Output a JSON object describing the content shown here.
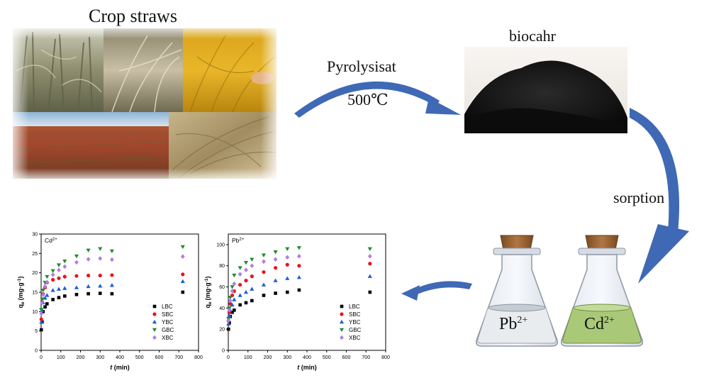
{
  "labels": {
    "crop_straws": "Crop straws",
    "pyrolysis": "Pyrolysisat",
    "temperature": "500℃",
    "biochar": "biocahr",
    "sorption": "sorption",
    "flask_pb_ion": "Pb",
    "flask_pb_charge": "2+",
    "flask_cd_ion": "Cd",
    "flask_cd_charge": "2+"
  },
  "colors": {
    "arrow_blue": "#3f69b5",
    "flask_pb_liquid": "#e9ecef",
    "flask_cd_liquid": "#a9c978",
    "cork": "#a0663a"
  },
  "chart_data": [
    {
      "type": "scatter",
      "title": "Cd2+",
      "ion": "Cd",
      "ion_charge": "2+",
      "ylabel_main": "q",
      "ylabel_sub": "e",
      "ylabel_unit": "(mg·g",
      "ylabel_exp": "-1",
      "ylabel_close": ")",
      "xlabel_main": "t",
      "xlabel_unit": " (min)",
      "xlim": [
        0,
        800
      ],
      "ylim": [
        0,
        30
      ],
      "xticks": [
        0,
        100,
        200,
        300,
        400,
        500,
        600,
        700,
        800
      ],
      "yticks": [
        0,
        5,
        10,
        15,
        20,
        25,
        30
      ],
      "legend_position": "lower-right",
      "x": [
        1,
        5,
        10,
        20,
        30,
        60,
        90,
        120,
        180,
        240,
        300,
        360,
        720
      ],
      "series": [
        {
          "name": "LBC",
          "marker": "square",
          "color": "#000000",
          "values": [
            5.3,
            7.3,
            10.0,
            11.2,
            12.0,
            13.1,
            13.6,
            14.0,
            14.4,
            14.6,
            14.7,
            14.6,
            15.0
          ]
        },
        {
          "name": "SBC",
          "marker": "circle",
          "color": "#e8141e",
          "values": [
            8.0,
            12.5,
            14.5,
            16.2,
            17.5,
            18.2,
            18.6,
            19.0,
            19.2,
            19.3,
            19.3,
            19.4,
            19.6
          ]
        },
        {
          "name": "YBC",
          "marker": "triangle-up",
          "color": "#1e5fd6",
          "values": [
            7.3,
            10.3,
            12.3,
            13.5,
            14.2,
            15.5,
            15.8,
            16.0,
            16.2,
            16.5,
            16.6,
            16.8,
            17.8
          ]
        },
        {
          "name": "GBC",
          "marker": "triangle-down",
          "color": "#1f8c2e",
          "values": [
            10.5,
            13.2,
            15.5,
            17.5,
            19.0,
            20.5,
            22.0,
            23.0,
            24.3,
            25.8,
            26.2,
            25.6,
            26.7
          ]
        },
        {
          "name": "XBC",
          "marker": "diamond",
          "color": "#b07ee0",
          "values": [
            9.5,
            12.3,
            14.3,
            16.5,
            17.6,
            19.5,
            20.7,
            21.6,
            22.7,
            23.5,
            23.7,
            23.4,
            24.2
          ]
        }
      ]
    },
    {
      "type": "scatter",
      "title": "Pb2+",
      "ion": "Pb",
      "ion_charge": "2+",
      "ylabel_main": "q",
      "ylabel_sub": "e",
      "ylabel_unit": "(mg·g",
      "ylabel_exp": "-1",
      "ylabel_close": ")",
      "xlabel_main": "t",
      "xlabel_unit": " (min)",
      "xlim": [
        0,
        800
      ],
      "ylim": [
        0,
        110
      ],
      "xticks": [
        0,
        100,
        200,
        300,
        400,
        500,
        600,
        700,
        800
      ],
      "yticks": [
        0,
        20,
        40,
        60,
        80,
        100
      ],
      "legend_position": "lower-right",
      "x": [
        1,
        5,
        10,
        20,
        30,
        60,
        90,
        120,
        180,
        240,
        300,
        360,
        720
      ],
      "series": [
        {
          "name": "LBC",
          "marker": "square",
          "color": "#000000",
          "values": [
            20,
            26,
            32,
            36,
            38,
            43,
            45,
            47,
            52,
            54,
            55,
            57,
            55
          ]
        },
        {
          "name": "SBC",
          "marker": "circle",
          "color": "#e8141e",
          "values": [
            28,
            36,
            44,
            52,
            56,
            62,
            66,
            70,
            74,
            78,
            81,
            80,
            82
          ]
        },
        {
          "name": "YBC",
          "marker": "triangle-up",
          "color": "#1e5fd6",
          "values": [
            25,
            33,
            38,
            43,
            48,
            52,
            55,
            58,
            62,
            66,
            68,
            69,
            70
          ]
        },
        {
          "name": "GBC",
          "marker": "triangle-down",
          "color": "#1f8c2e",
          "values": [
            30,
            40,
            50,
            60,
            71,
            78,
            83,
            86,
            90,
            93,
            96,
            97,
            96
          ]
        },
        {
          "name": "XBC",
          "marker": "diamond",
          "color": "#b07ee0",
          "values": [
            28,
            38,
            47,
            56,
            63,
            72,
            76,
            80,
            84,
            86,
            88,
            89,
            89
          ]
        }
      ]
    }
  ]
}
